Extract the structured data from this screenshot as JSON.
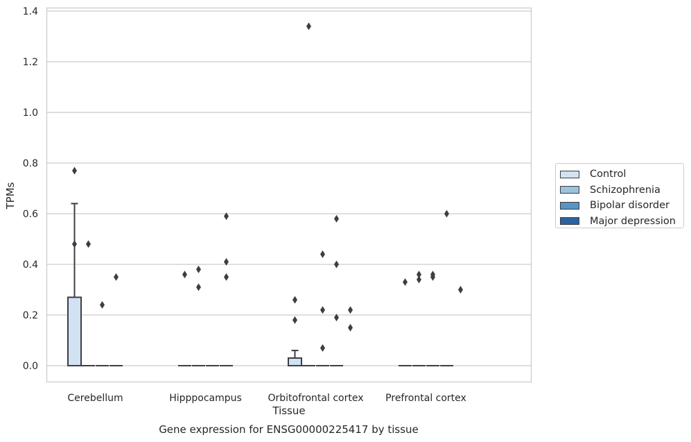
{
  "caption": "Gene expression for ENSG00000225417 by tissue",
  "legend": {
    "entries": [
      {
        "label": "Control",
        "color": "#d1e2f2"
      },
      {
        "label": "Schizophrenia",
        "color": "#9dc2dc"
      },
      {
        "label": "Bipolar disorder",
        "color": "#5894c4"
      },
      {
        "label": "Major depression",
        "color": "#2a64a0"
      }
    ]
  },
  "chart_data": {
    "type": "box",
    "title": "",
    "xlabel": "Tissue",
    "ylabel": "TPMs",
    "categories": [
      "Cerebellum",
      "Hipppocampus",
      "Orbitofrontal cortex",
      "Prefrontal cortex"
    ],
    "ylim": [
      -0.065,
      1.41
    ],
    "yticks": [
      "0.0",
      "0.2",
      "0.4",
      "0.6",
      "0.8",
      "1.0",
      "1.2",
      "1.4"
    ],
    "grid": true,
    "legend_position": "right",
    "series": [
      {
        "name": "Control",
        "color": "#d1e2f2",
        "boxes": [
          {
            "q1": 0,
            "median": 0,
            "q3": 0.27,
            "whisker_low": 0,
            "whisker_high": 0.64,
            "outliers": [
              0.77,
              0.48
            ]
          },
          {
            "q1": 0,
            "median": 0,
            "q3": 0,
            "whisker_low": 0,
            "whisker_high": 0,
            "outliers": [
              0.36
            ]
          },
          {
            "q1": 0,
            "median": 0,
            "q3": 0.03,
            "whisker_low": 0,
            "whisker_high": 0.06,
            "outliers": [
              0.26,
              0.18
            ]
          },
          {
            "q1": 0,
            "median": 0,
            "q3": 0,
            "whisker_low": 0,
            "whisker_high": 0,
            "outliers": [
              0.33
            ]
          }
        ]
      },
      {
        "name": "Schizophrenia",
        "color": "#9dc2dc",
        "boxes": [
          {
            "q1": 0,
            "median": 0,
            "q3": 0,
            "whisker_low": 0,
            "whisker_high": 0,
            "outliers": [
              0.48
            ]
          },
          {
            "q1": 0,
            "median": 0,
            "q3": 0,
            "whisker_low": 0,
            "whisker_high": 0,
            "outliers": [
              0.38,
              0.31
            ]
          },
          {
            "q1": 0,
            "median": 0,
            "q3": 0,
            "whisker_low": 0,
            "whisker_high": 0,
            "outliers": [
              1.34
            ]
          },
          {
            "q1": 0,
            "median": 0,
            "q3": 0,
            "whisker_low": 0,
            "whisker_high": 0,
            "outliers": [
              0.36,
              0.34
            ]
          }
        ]
      },
      {
        "name": "Bipolar disorder",
        "color": "#5894c4",
        "boxes": [
          {
            "q1": 0,
            "median": 0,
            "q3": 0,
            "whisker_low": 0,
            "whisker_high": 0,
            "outliers": [
              0.24
            ]
          },
          {
            "q1": 0,
            "median": 0,
            "q3": 0,
            "whisker_low": 0,
            "whisker_high": 0,
            "outliers": []
          },
          {
            "q1": 0,
            "median": 0,
            "q3": 0,
            "whisker_low": 0,
            "whisker_high": 0,
            "outliers": [
              0.44,
              0.22,
              0.07
            ]
          },
          {
            "q1": 0,
            "median": 0,
            "q3": 0,
            "whisker_low": 0,
            "whisker_high": 0,
            "outliers": [
              0.36,
              0.35
            ]
          }
        ]
      },
      {
        "name": "Major depression",
        "color": "#2a64a0",
        "boxes": [
          {
            "q1": 0,
            "median": 0,
            "q3": 0,
            "whisker_low": 0,
            "whisker_high": 0,
            "outliers": [
              0.35
            ]
          },
          {
            "q1": 0,
            "median": 0,
            "q3": 0,
            "whisker_low": 0,
            "whisker_high": 0,
            "outliers": [
              0.59,
              0.41,
              0.35
            ]
          },
          {
            "q1": 0,
            "median": 0,
            "q3": 0,
            "whisker_low": 0,
            "whisker_high": 0,
            "outliers": [
              0.58,
              0.4,
              0.19
            ]
          },
          {
            "q1": 0,
            "median": 0,
            "q3": 0,
            "whisker_low": 0,
            "whisker_high": 0,
            "outliers": [
              0.6
            ]
          }
        ]
      }
    ],
    "extra_points": [
      {
        "category": 2,
        "series": 4,
        "values": [
          0.22,
          0.15
        ]
      },
      {
        "category": 3,
        "series": 4,
        "values": [
          0.3
        ]
      }
    ]
  }
}
